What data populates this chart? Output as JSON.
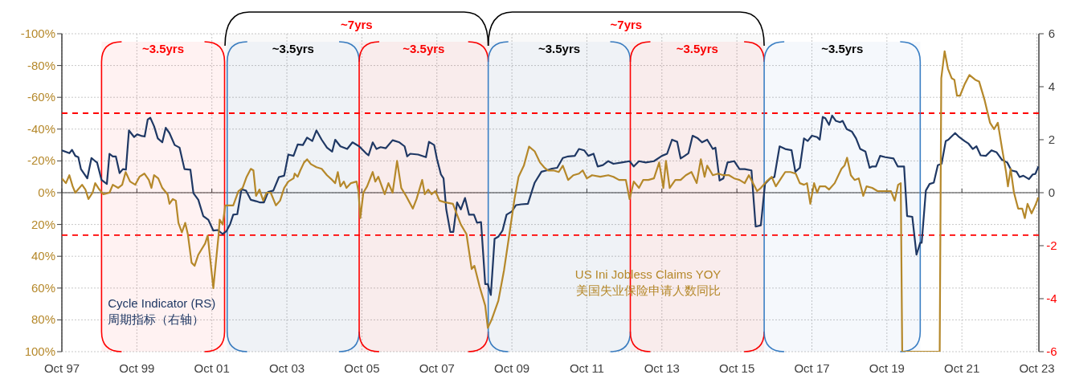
{
  "chart_data": {
    "type": "line",
    "xlim": [
      "1997-10-01",
      "2023-10-20"
    ],
    "xticks": [
      {
        "value": "1997-10-01",
        "label": "Oct 97"
      },
      {
        "value": "1999-10-01",
        "label": "Oct 99"
      },
      {
        "value": "2001-10-01",
        "label": "Oct 01"
      },
      {
        "value": "2003-10-01",
        "label": "Oct 03"
      },
      {
        "value": "2005-10-01",
        "label": "Oct 05"
      },
      {
        "value": "2007-10-01",
        "label": "Oct 07"
      },
      {
        "value": "2009-10-01",
        "label": "Oct 09"
      },
      {
        "value": "2011-10-01",
        "label": "Oct 11"
      },
      {
        "value": "2013-10-01",
        "label": "Oct 13"
      },
      {
        "value": "2015-10-01",
        "label": "Oct 15"
      },
      {
        "value": "2017-10-01",
        "label": "Oct 17"
      },
      {
        "value": "2019-10-01",
        "label": "Oct 19"
      },
      {
        "value": "2021-10-01",
        "label": "Oct 21"
      },
      {
        "value": "2023-10-01",
        "label": "Oct 23"
      }
    ],
    "ylim": [
      100,
      -100
    ],
    "yticks": [
      {
        "value": -100,
        "label": "-100%"
      },
      {
        "value": -80,
        "label": "-80%"
      },
      {
        "value": -60,
        "label": "-60%"
      },
      {
        "value": -40,
        "label": "-40%"
      },
      {
        "value": -20,
        "label": "-20%"
      },
      {
        "value": 0,
        "label": "0%"
      },
      {
        "value": 20,
        "label": "20%"
      },
      {
        "value": 40,
        "label": "40%"
      },
      {
        "value": 60,
        "label": "60%"
      },
      {
        "value": 80,
        "label": "80%"
      },
      {
        "value": 100,
        "label": "100%"
      }
    ],
    "y2lim": [
      -6,
      6
    ],
    "y2ticks": [
      6,
      4,
      2,
      0,
      -2,
      -4,
      -6
    ],
    "grid": true,
    "marker": "none",
    "series": [
      {
        "name": "Cycle Indicator (RS)\n周期指标（右轴）",
        "color": "#1f3864",
        "axis": "y2",
        "x": [
          "1997-10-01",
          "1997-12-13",
          "1998-01-08",
          "1998-02-10",
          "1998-03-09",
          "1998-04-04",
          "1998-06-05",
          "1998-07-15",
          "1998-08-21",
          "1998-09-09",
          "1998-10-22",
          "1998-12-13",
          "1999-01-08",
          "1999-02-10",
          "1999-03-09",
          "1999-04-15",
          "1999-05-17",
          "1999-06-16",
          "1999-07-15",
          "1999-09-05",
          "1999-10-04",
          "1999-11-10",
          "1999-12-16",
          "2000-01-15",
          "2000-02-10",
          "2000-03-16",
          "2000-04-22",
          "2000-06-05",
          "2000-07-08",
          "2000-08-14",
          "2000-10-04",
          "2000-11-21",
          "2001-01-08",
          "2001-03-05",
          "2001-04-04",
          "2001-05-21",
          "2001-07-08",
          "2001-08-28",
          "2001-10-15",
          "2001-11-28",
          "2002-01-15",
          "2002-02-21",
          "2002-03-27",
          "2002-04-26",
          "2002-06-05",
          "2002-07-15",
          "2002-08-28",
          "2002-10-15",
          "2002-12-05",
          "2003-01-15",
          "2003-02-21",
          "2003-04-01",
          "2003-05-21",
          "2003-07-15",
          "2003-09-05",
          "2003-10-15",
          "2003-12-05",
          "2004-01-15",
          "2004-03-05",
          "2004-04-15",
          "2004-06-05",
          "2004-07-15",
          "2004-09-05",
          "2004-10-26",
          "2004-12-16",
          "2005-01-15",
          "2005-03-05",
          "2005-05-10",
          "2005-07-01",
          "2005-09-05",
          "2005-11-10",
          "2005-12-05",
          "2006-01-15",
          "2006-02-21",
          "2006-04-01",
          "2006-05-21",
          "2006-07-26",
          "2006-10-01",
          "2006-11-21",
          "2006-12-16",
          "2007-01-15",
          "2007-04-01",
          "2007-06-16",
          "2007-07-15",
          "2007-09-05",
          "2007-10-01",
          "2007-11-10",
          "2007-12-05",
          "2008-01-01",
          "2008-02-10",
          "2008-03-09",
          "2008-04-15",
          "2008-05-21",
          "2008-07-01",
          "2008-08-10",
          "2008-09-27",
          "2008-10-26",
          "2008-12-05",
          "2009-01-15",
          "2009-02-10",
          "2009-03-09",
          "2009-04-15",
          "2009-05-21",
          "2009-07-01",
          "2009-08-10",
          "2009-10-01",
          "2009-11-10",
          "2010-01-01",
          "2010-03-05",
          "2010-04-15",
          "2010-05-10",
          "2010-07-15",
          "2010-09-05",
          "2010-10-26",
          "2010-12-16",
          "2011-02-10",
          "2011-04-01",
          "2011-06-05",
          "2011-07-15",
          "2011-09-05",
          "2011-10-15",
          "2011-12-05",
          "2012-01-15",
          "2012-03-05",
          "2012-04-26",
          "2012-06-16",
          "2012-09-05",
          "2012-11-21",
          "2013-01-01",
          "2013-02-21",
          "2013-04-26",
          "2013-07-15",
          "2013-10-01",
          "2013-11-21",
          "2014-01-08",
          "2014-02-28",
          "2014-04-01",
          "2014-05-10",
          "2014-06-16",
          "2014-07-26",
          "2014-09-16",
          "2014-10-26",
          "2014-12-16",
          "2015-02-10",
          "2015-03-05",
          "2015-04-15",
          "2015-05-21",
          "2015-07-01",
          "2015-09-05",
          "2015-10-26",
          "2015-12-16",
          "2016-02-21",
          "2016-04-01",
          "2016-05-21",
          "2016-07-01",
          "2016-08-21",
          "2016-10-01",
          "2016-11-21",
          "2017-01-15",
          "2017-03-16",
          "2017-04-22",
          "2017-06-05",
          "2017-07-15",
          "2017-08-21",
          "2017-10-01",
          "2017-11-21",
          "2017-12-16",
          "2018-01-15",
          "2018-02-10",
          "2018-03-16",
          "2018-04-15",
          "2018-05-21",
          "2018-07-01",
          "2018-07-26",
          "2018-09-05",
          "2018-10-26",
          "2018-12-05",
          "2019-01-15",
          "2019-03-05",
          "2019-04-15",
          "2019-05-10",
          "2019-06-16",
          "2019-07-26",
          "2019-09-16",
          "2019-12-05",
          "2020-01-15",
          "2020-03-16",
          "2020-04-15",
          "2020-06-05",
          "2020-07-15",
          "2020-08-21",
          "2020-09-05",
          "2020-10-15",
          "2020-11-21",
          "2021-01-01",
          "2021-02-10",
          "2021-03-16",
          "2021-04-26",
          "2021-05-21",
          "2021-06-16",
          "2021-07-26",
          "2021-09-05",
          "2021-10-26",
          "2021-12-05",
          "2022-01-15",
          "2022-02-21",
          "2022-04-01",
          "2022-05-21",
          "2022-07-15",
          "2022-09-05",
          "2022-10-26",
          "2022-12-16",
          "2023-01-26",
          "2023-03-16",
          "2023-04-15",
          "2023-05-21",
          "2023-07-15",
          "2023-08-21",
          "2023-09-16",
          "2023-10-15"
        ],
        "values": [
          1.6,
          1.49,
          1.62,
          1.39,
          1.34,
          0.89,
          0.54,
          1.31,
          1.19,
          1.14,
          0.48,
          0.33,
          1.47,
          1.37,
          1.37,
          0.74,
          0.89,
          0.87,
          2.35,
          2.1,
          2.2,
          2.15,
          2.12,
          2.76,
          2.83,
          2.51,
          2.05,
          1.9,
          2.45,
          2.25,
          1.8,
          1.7,
          0.89,
          0.87,
          -0.02,
          -0.27,
          -0.88,
          -1.03,
          -1.43,
          -1.41,
          -1.56,
          -1.45,
          -1.18,
          -0.83,
          -0.81,
          0.13,
          0.08,
          -0.27,
          -0.32,
          -0.37,
          -0.37,
          0.03,
          0.08,
          0.59,
          0.64,
          1.44,
          1.39,
          1.82,
          1.8,
          2.08,
          1.95,
          2.35,
          2.0,
          1.7,
          1.55,
          2.0,
          1.75,
          1.65,
          1.9,
          1.75,
          1.49,
          1.41,
          1.9,
          1.65,
          1.72,
          1.68,
          1.98,
          1.9,
          1.75,
          1.37,
          1.47,
          1.44,
          1.34,
          1.92,
          1.8,
          1.29,
          0.69,
          0.54,
          -0.63,
          -1.48,
          -1.48,
          -0.37,
          -0.63,
          -0.2,
          -0.83,
          -0.83,
          -1.13,
          -1.11,
          -3.45,
          -3.45,
          -3.86,
          -1.74,
          -1.66,
          -1.43,
          -0.83,
          -0.71,
          -0.47,
          -0.44,
          -0.42,
          0.08,
          0.38,
          0.79,
          0.84,
          0.91,
          0.94,
          1.31,
          1.37,
          1.39,
          1.65,
          1.6,
          1.39,
          1.47,
          0.99,
          1.04,
          1.19,
          1.09,
          1.14,
          1.19,
          0.99,
          1.19,
          1.14,
          1.19,
          1.39,
          1.47,
          2.0,
          1.92,
          1.29,
          1.39,
          1.49,
          2.15,
          2.05,
          1.9,
          2.0,
          1.65,
          1.7,
          0.46,
          0.54,
          1.14,
          1.19,
          0.89,
          0.89,
          0.84,
          -1.28,
          -1.23,
          0.33,
          0.54,
          0.59,
          1.75,
          1.65,
          1.6,
          0.79,
          0.94,
          2.05,
          1.95,
          2.15,
          2.1,
          2.0,
          2.86,
          2.81,
          2.56,
          2.91,
          2.71,
          2.66,
          2.71,
          2.4,
          2.3,
          2.05,
          1.65,
          1.55,
          0.94,
          0.99,
          0.99,
          1.39,
          1.34,
          1.29,
          0.99,
          0.99,
          -0.88,
          -0.91,
          -2.34,
          -1.89,
          -1.89,
          0.08,
          0.33,
          0.38,
          1.04,
          1.09,
          1.95,
          2.0,
          2.1,
          2.25,
          2.1,
          1.95,
          1.85,
          1.65,
          1.75,
          1.41,
          1.39,
          1.6,
          1.52,
          1.24,
          1.14,
          0.84,
          0.79,
          0.59,
          0.64,
          0.51,
          0.69,
          0.71,
          0.99
        ]
      },
      {
        "name": "US Ini Jobless Claims YOY\n美国失业保险申请人数同比",
        "color": "#b5882a",
        "axis": "y",
        "x": [
          "1997-10-01",
          "1997-11-10",
          "1997-12-13",
          "1998-01-15",
          "1998-02-10",
          "1998-04-15",
          "1998-05-17",
          "1998-06-16",
          "1998-07-26",
          "1998-08-21",
          "1998-10-01",
          "1998-11-10",
          "1999-01-08",
          "1999-02-10",
          "1999-04-01",
          "1999-05-10",
          "1999-06-13",
          "1999-07-26",
          "1999-09-16",
          "1999-10-26",
          "1999-12-13",
          "2000-01-26",
          "2000-02-21",
          "2000-03-16",
          "2000-04-26",
          "2000-06-05",
          "2000-07-26",
          "2000-08-14",
          "2000-09-16",
          "2000-10-15",
          "2000-11-10",
          "2000-12-13",
          "2001-01-15",
          "2001-02-10",
          "2001-03-16",
          "2001-04-15",
          "2001-05-21",
          "2001-07-26",
          "2001-08-21",
          "2001-10-15",
          "2001-12-05",
          "2001-12-16",
          "2002-01-15",
          "2002-02-10",
          "2002-03-16",
          "2002-04-26",
          "2002-06-16",
          "2002-07-26",
          "2002-09-05",
          "2002-10-15",
          "2002-11-10",
          "2002-12-05",
          "2003-01-08",
          "2003-02-14",
          "2003-03-16",
          "2003-04-26",
          "2003-06-16",
          "2003-07-26",
          "2003-09-05",
          "2003-10-15",
          "2003-12-05",
          "2003-12-16",
          "2004-01-15",
          "2004-02-10",
          "2004-03-16",
          "2004-04-15",
          "2004-05-21",
          "2004-07-15",
          "2004-09-05",
          "2004-10-26",
          "2004-12-16",
          "2005-01-15",
          "2005-02-10",
          "2005-03-05",
          "2005-04-08",
          "2005-05-03",
          "2005-06-16",
          "2005-08-10",
          "2005-08-28",
          "2005-09-16",
          "2005-10-15",
          "2005-11-21",
          "2006-01-15",
          "2006-02-10",
          "2006-03-09",
          "2006-05-10",
          "2006-06-16",
          "2006-07-26",
          "2006-09-09",
          "2006-10-19",
          "2006-12-05",
          "2007-02-10",
          "2007-03-16",
          "2007-05-10",
          "2007-06-05",
          "2007-07-08",
          "2007-08-10",
          "2007-09-16",
          "2007-10-26",
          "2007-12-16",
          "2008-03-05",
          "2008-04-15",
          "2008-05-21",
          "2008-07-15",
          "2008-09-05",
          "2008-10-01",
          "2008-11-21",
          "2009-01-15",
          "2009-02-10",
          "2009-03-16",
          "2009-05-21",
          "2009-07-15",
          "2009-09-05",
          "2009-10-26",
          "2009-12-05",
          "2010-01-26",
          "2010-03-16",
          "2010-05-10",
          "2010-07-01",
          "2010-08-10",
          "2010-09-16",
          "2010-11-10",
          "2011-01-01",
          "2011-02-10",
          "2011-04-01",
          "2011-05-21",
          "2011-07-15",
          "2011-08-21",
          "2011-10-01",
          "2011-11-21",
          "2012-02-10",
          "2012-04-26",
          "2012-06-16",
          "2012-08-10",
          "2012-10-15",
          "2012-11-21",
          "2013-01-01",
          "2013-02-21",
          "2013-04-01",
          "2013-05-21",
          "2013-07-15",
          "2013-09-05",
          "2013-10-15",
          "2013-11-10",
          "2013-12-16",
          "2014-02-10",
          "2014-04-01",
          "2014-05-21",
          "2014-07-15",
          "2014-09-05",
          "2014-10-15",
          "2014-11-21",
          "2014-12-16",
          "2015-02-10",
          "2015-04-01",
          "2015-05-21",
          "2015-07-15",
          "2015-09-05",
          "2015-10-26",
          "2015-12-16",
          "2016-01-26",
          "2016-03-05",
          "2016-04-15",
          "2016-05-21",
          "2016-07-15",
          "2016-09-05",
          "2016-10-15",
          "2016-12-05",
          "2017-01-15",
          "2017-03-05",
          "2017-04-26",
          "2017-06-05",
          "2017-07-15",
          "2017-08-14",
          "2017-09-16",
          "2017-10-22",
          "2017-11-21",
          "2017-12-16",
          "2018-02-10",
          "2018-03-16",
          "2018-05-10",
          "2018-07-15",
          "2018-08-14",
          "2018-09-09",
          "2018-10-15",
          "2018-11-21",
          "2019-01-01",
          "2019-02-14",
          "2019-03-16",
          "2019-05-10",
          "2019-07-01",
          "2019-08-10",
          "2019-09-16",
          "2019-11-10",
          "2019-12-16",
          "2020-01-19",
          "2020-02-14",
          "2020-02-28",
          "2021-02-28",
          "2021-03-13",
          "2021-04-15",
          "2021-05-17",
          "2021-06-23",
          "2021-07-19",
          "2021-08-14",
          "2021-09-13",
          "2021-10-26",
          "2021-12-13",
          "2022-02-10",
          "2022-03-16",
          "2022-05-10",
          "2022-07-01",
          "2022-08-10",
          "2022-09-16",
          "2022-10-26",
          "2022-12-05",
          "2022-12-23",
          "2023-01-19",
          "2023-02-21",
          "2023-04-01",
          "2023-05-10",
          "2023-06-05",
          "2023-07-01",
          "2023-08-10",
          "2023-09-16",
          "2023-10-15"
        ],
        "values": [
          -9,
          -6,
          -11,
          -4,
          0,
          -5,
          -2,
          4,
          0,
          -6,
          -2,
          1,
          0,
          -5,
          -3,
          -5,
          -13,
          -7,
          -5,
          -10,
          -12,
          -8,
          -3,
          -11,
          -9,
          -3,
          1,
          7,
          4,
          5,
          19,
          25,
          19,
          26,
          44,
          46,
          39,
          32,
          27,
          60,
          27,
          17,
          20,
          8,
          8,
          8,
          -1,
          -3,
          -10,
          -15,
          -14,
          2,
          -2,
          5,
          0,
          0,
          8,
          5,
          -3,
          -7,
          -9,
          -12,
          -10,
          -14,
          -19,
          -21,
          -18,
          -16,
          -15,
          -11,
          -8,
          -6,
          -13,
          -4,
          -7,
          -3,
          -6,
          -7,
          -1,
          16,
          0,
          -4,
          -13,
          -7,
          -10,
          1,
          -6,
          0,
          -20,
          -3,
          2,
          10,
          4,
          -8,
          1,
          -2,
          1,
          -1,
          5,
          6,
          7,
          14,
          20,
          26,
          48,
          46,
          59,
          71,
          85,
          80,
          68,
          49,
          27,
          4,
          -10,
          -17,
          -29,
          -26,
          -19,
          -16,
          -14,
          -14,
          -13,
          -17,
          -8,
          -11,
          -12,
          -14,
          -9,
          -11,
          -10,
          -11,
          -10,
          -8,
          -8,
          4,
          -7,
          -3,
          -8,
          -8,
          -9,
          -19,
          -3,
          -20,
          -3,
          -8,
          -8,
          -11,
          -13,
          -6,
          -21,
          -10,
          -17,
          -11,
          -12,
          -11,
          -11,
          -9,
          -8,
          -6,
          -11,
          -6,
          -1,
          -3,
          -7,
          -10,
          -4,
          -9,
          -13,
          -13,
          -12,
          -6,
          -5,
          -6,
          7,
          -6,
          0,
          -4,
          -4,
          -2,
          -6,
          -15,
          -17,
          -22,
          -11,
          -8,
          -9,
          2,
          -4,
          -3,
          -1,
          -1,
          -1,
          -1,
          5,
          -5,
          -6,
          100,
          100,
          -72,
          -89,
          -78,
          -72,
          -71,
          -61,
          -61,
          -68,
          -74,
          -71,
          -70,
          -58,
          -44,
          -40,
          -44,
          -28,
          -13,
          -4,
          -15,
          0,
          10,
          10,
          16,
          7,
          13,
          8,
          3
        ]
      }
    ],
    "ref_lines": [
      {
        "axis": "y2",
        "value": 3,
        "color": "#ff0000",
        "line_style": "dashed"
      },
      {
        "axis": "y2",
        "value": -1.6,
        "color": "#ff0000",
        "line_style": "dashed"
      },
      {
        "axis": "x",
        "value": "1998-10-22",
        "color": "#ff0000",
        "line_style": "solid"
      },
      {
        "axis": "x",
        "value": "2002-02-03",
        "color": "#ff0000",
        "line_style": "solid"
      },
      {
        "axis": "x",
        "value": "2002-02-28",
        "color": "#3b7fc4",
        "line_style": "solid"
      },
      {
        "axis": "x",
        "value": "2005-09-05",
        "color": "#ff0000",
        "line_style": "solid"
      },
      {
        "axis": "x",
        "value": "2009-02-14",
        "color": "#3b7fc4",
        "line_style": "solid"
      },
      {
        "axis": "x",
        "value": "2012-11-28",
        "color": "#ff0000",
        "line_style": "solid"
      },
      {
        "axis": "x",
        "value": "2016-06-23",
        "color": "#3b7fc4",
        "line_style": "solid"
      },
      {
        "axis": "x",
        "value": "2020-08-21",
        "color": "#3b7fc4",
        "line_style": "solid"
      }
    ],
    "bands": [
      {
        "axis": "x",
        "from": "1998-10-22",
        "to": "2002-02-03",
        "label": "~3.5yrs",
        "color": "#ff0000"
      },
      {
        "axis": "x",
        "from": "2002-02-28",
        "to": "2005-09-05",
        "label": "~3.5yrs",
        "color": "#3b7fc4"
      },
      {
        "axis": "x",
        "from": "2005-09-05",
        "to": "2009-02-14",
        "label": "~3.5yrs",
        "color": "#ff0000"
      },
      {
        "axis": "x",
        "from": "2009-02-14",
        "to": "2012-11-28",
        "label": "~3.5yrs",
        "color": "#3b7fc4"
      },
      {
        "axis": "x",
        "from": "2012-11-28",
        "to": "2016-06-23",
        "label": "~3.5yrs",
        "color": "#ff0000"
      },
      {
        "axis": "x",
        "from": "2016-06-23",
        "to": "2020-08-21",
        "label": "~3.5yrs",
        "color": "#3b7fc4"
      },
      {
        "axis": "x",
        "from": "2002-02-07",
        "to": "2009-02-14",
        "label": "~7yrs",
        "color": "#000000"
      },
      {
        "axis": "x",
        "from": "2009-02-14",
        "to": "2016-06-23",
        "label": "~7yrs",
        "color": "#000000"
      }
    ]
  }
}
